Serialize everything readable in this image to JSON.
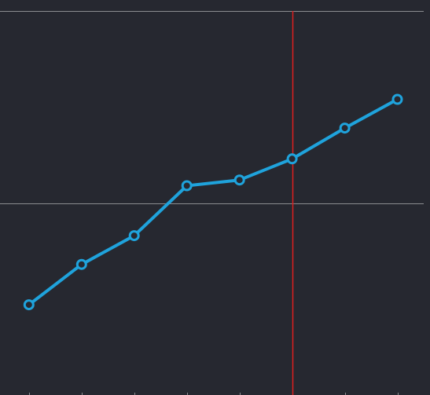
{
  "colors": {
    "background": "#262830",
    "series": "#1fa3dc",
    "point_fill": "#262830",
    "gridline": "#8b8d91",
    "cursor_line": "#e01e1e",
    "axis_tick": "#8b8d91"
  },
  "chart_data": {
    "type": "line",
    "title": "",
    "xlabel": "",
    "ylabel": "",
    "x": [
      1,
      2,
      3,
      4,
      5,
      6,
      7,
      8
    ],
    "series": [
      {
        "values": [
          -0.53,
          -0.32,
          -0.17,
          0.09,
          0.12,
          0.23,
          0.39,
          0.54
        ]
      }
    ],
    "xlim": [
      0.45,
      8.5
    ],
    "ylim": [
      -1,
      1
    ],
    "gridlines_y": [
      1,
      0
    ],
    "cursor_x": 6.0,
    "grid": "horizontal",
    "legend": "none",
    "markers": "hollow-circle"
  }
}
